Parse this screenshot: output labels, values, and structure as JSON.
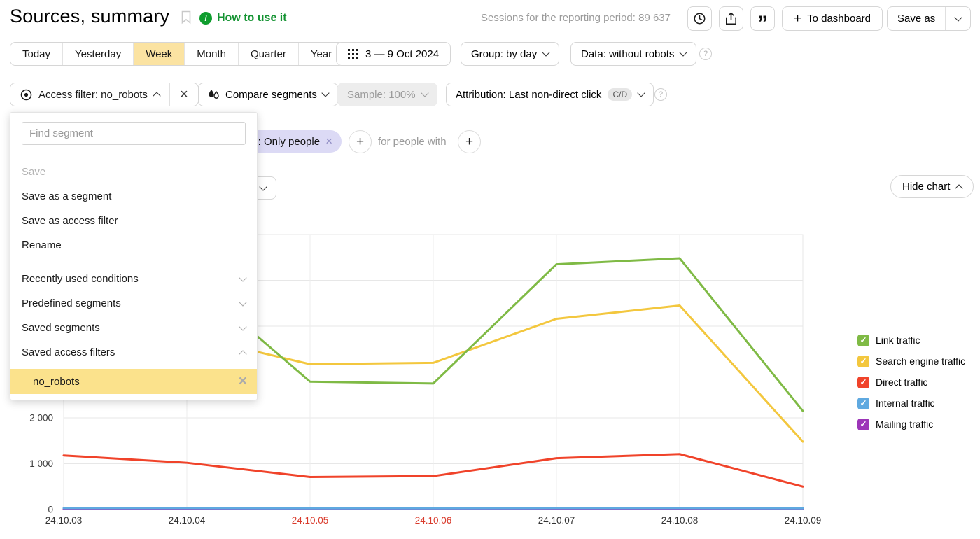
{
  "header": {
    "title": "Sources, summary",
    "help_link": "How to use it",
    "sessions_text": "Sessions for the reporting period: 89 637",
    "to_dashboard_label": "To dashboard",
    "save_as_label": "Save as"
  },
  "icons": {
    "bookmark-icon": "bookmark outline",
    "info-icon": "i",
    "time-icon": "clock",
    "export-icon": "share/upload",
    "quotes-icon": "”",
    "grid-icon": "3x3 dot grid",
    "target-icon": "concentric circles",
    "drops-icon": "two droplets",
    "help-icon": "?",
    "close-icon": "×",
    "plus-icon": "+",
    "check-icon": "✓"
  },
  "periods": {
    "items": [
      "Today",
      "Yesterday",
      "Week",
      "Month",
      "Quarter",
      "Year"
    ],
    "selected": "Week"
  },
  "date_range": "3 — 9 Oct 2024",
  "group_select": "Group: by day",
  "data_select": "Data: without robots",
  "filters": {
    "access_filter": "Access filter: no_robots",
    "compare_segments": "Compare segments",
    "sample": "Sample: 100%",
    "attribution": "Attribution: Last non-direct click",
    "attribution_badge": "C/D"
  },
  "conditions": {
    "tag": ": Only people",
    "for_people_with": "for people with"
  },
  "chart_controls": {
    "hide_chart": "Hide chart"
  },
  "segment_menu": {
    "search_placeholder": "Find segment",
    "actions": [
      {
        "label": "Save",
        "disabled": true
      },
      {
        "label": "Save as a segment",
        "disabled": false
      },
      {
        "label": "Save as access filter",
        "disabled": false
      },
      {
        "label": "Rename",
        "disabled": false
      }
    ],
    "groups": [
      {
        "label": "Recently used conditions",
        "expanded": false
      },
      {
        "label": "Predefined segments",
        "expanded": false
      },
      {
        "label": "Saved segments",
        "expanded": false
      },
      {
        "label": "Saved access filters",
        "expanded": true
      }
    ],
    "saved_access_filters": [
      {
        "label": "no_robots",
        "highlighted": true
      }
    ]
  },
  "chart_data": {
    "type": "line",
    "title": "",
    "xlabel": "",
    "ylabel": "",
    "categories": [
      "24.10.03",
      "24.10.04",
      "24.10.05",
      "24.10.06",
      "24.10.07",
      "24.10.08",
      "24.10.09"
    ],
    "weekend_indices": [
      2,
      3
    ],
    "weekend_tick_color": "#d93a2b",
    "tick_color": "#333333",
    "ylim": [
      0,
      6000
    ],
    "ytick_step": 1000,
    "grid": true,
    "legend_position": "right",
    "series": [
      {
        "name": "Link traffic",
        "color": "#7fba45",
        "values": [
          5200,
          5100,
          2790,
          2750,
          5350,
          5480,
          2150
        ]
      },
      {
        "name": "Search engine traffic",
        "color": "#f3c73e",
        "values": [
          3900,
          3800,
          3170,
          3200,
          4160,
          4450,
          1480
        ]
      },
      {
        "name": "Direct traffic",
        "color": "#f0432a",
        "values": [
          1180,
          1020,
          710,
          730,
          1120,
          1210,
          500
        ]
      },
      {
        "name": "Internal traffic",
        "color": "#5fa9e0",
        "values": [
          30,
          30,
          26,
          26,
          30,
          30,
          26
        ]
      },
      {
        "name": "Mailing traffic",
        "color": "#9c35b8",
        "values": [
          10,
          10,
          10,
          10,
          10,
          10,
          10
        ]
      }
    ]
  }
}
